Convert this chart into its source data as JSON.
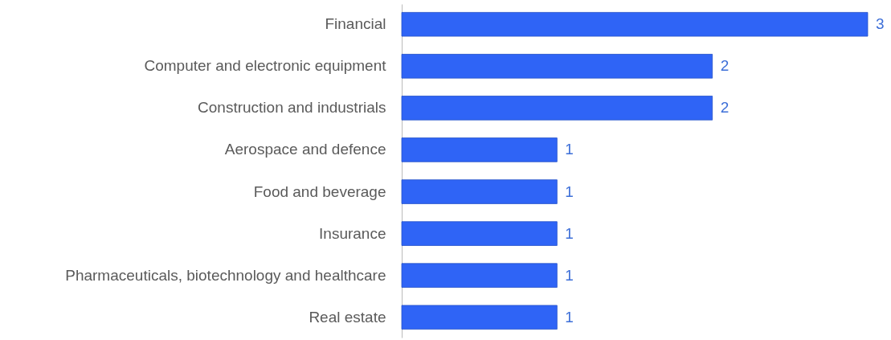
{
  "chart_data": {
    "type": "bar",
    "orientation": "horizontal",
    "categories": [
      "Financial",
      "Computer and electronic equipment",
      "Construction and industrials",
      "Aerospace and defence",
      "Food and beverage",
      "Insurance",
      "Pharmaceuticals, biotechnology and healthcare",
      "Real estate"
    ],
    "values": [
      3,
      2,
      2,
      1,
      1,
      1,
      1,
      1
    ],
    "color": "#2f64f6",
    "xlim": [
      0,
      3
    ],
    "data_labels": true,
    "tick_labels": "y"
  }
}
